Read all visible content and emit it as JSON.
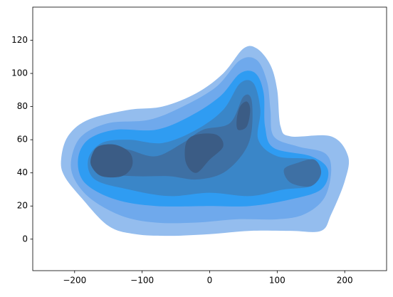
{
  "chart_data": {
    "type": "kde",
    "xlim": [
      -262,
      262
    ],
    "ylim": [
      -19,
      140
    ],
    "xticks": [
      {
        "value": -200,
        "label": "−200"
      },
      {
        "value": -100,
        "label": "−100"
      },
      0,
      100,
      200
    ],
    "yticks": [
      0,
      20,
      40,
      60,
      80,
      100,
      120
    ],
    "contours": [
      {
        "color": "#94bdee",
        "x": [
          -220,
          -210,
          -180,
          -120,
          -70,
          -20,
          20,
          50,
          70,
          90,
          100,
          105,
          120,
          180,
          205,
          200,
          180,
          165,
          120,
          60,
          0,
          -60,
          -110,
          -150,
          -190,
          -215
        ],
        "y": [
          48,
          62,
          72,
          78,
          80,
          88,
          100,
          115,
          115,
          105,
          90,
          68,
          62,
          62,
          50,
          35,
          15,
          5,
          5,
          5,
          3,
          2,
          3,
          8,
          25,
          38
        ]
      },
      {
        "color": "#6fa9ec",
        "x": [
          -205,
          -190,
          -150,
          -90,
          -40,
          10,
          45,
          70,
          85,
          90,
          95,
          130,
          170,
          180,
          170,
          140,
          100,
          40,
          -20,
          -80,
          -130,
          -175,
          -200
        ],
        "y": [
          48,
          62,
          70,
          72,
          80,
          92,
          108,
          108,
          95,
          78,
          62,
          56,
          52,
          42,
          25,
          15,
          12,
          12,
          10,
          10,
          14,
          24,
          36
        ]
      },
      {
        "color": "#2f9cf2",
        "x": [
          -195,
          -180,
          -140,
          -80,
          -30,
          15,
          45,
          68,
          80,
          82,
          95,
          150,
          175,
          165,
          120,
          60,
          0,
          -80,
          -140,
          -185
        ],
        "y": [
          48,
          60,
          66,
          66,
          74,
          86,
          100,
          100,
          88,
          68,
          55,
          50,
          42,
          30,
          24,
          20,
          20,
          20,
          24,
          34
        ]
      },
      {
        "color": "#3a86c8",
        "x": [
          -180,
          -160,
          -120,
          -70,
          -20,
          20,
          45,
          65,
          75,
          72,
          100,
          150,
          165,
          150,
          110,
          60,
          0,
          -60,
          -120,
          -170
        ],
        "y": [
          48,
          58,
          60,
          58,
          66,
          78,
          94,
          94,
          78,
          60,
          50,
          48,
          40,
          32,
          30,
          26,
          28,
          26,
          30,
          36
        ]
      },
      {
        "color": "#3e70a4",
        "x": [
          -170,
          -150,
          -120,
          -80,
          -40,
          -10,
          30,
          50,
          62,
          62,
          50,
          20,
          -20,
          -60,
          -110,
          -160
        ],
        "y": [
          48,
          56,
          54,
          50,
          58,
          66,
          70,
          86,
          84,
          65,
          52,
          40,
          36,
          38,
          38,
          40
        ]
      },
      {
        "color": "#3e70a4",
        "x": [
          110,
          130,
          155,
          165,
          150,
          120
        ],
        "y": [
          42,
          46,
          48,
          40,
          32,
          34
        ]
      },
      {
        "color": "#3b5c85",
        "x": [
          -175,
          -165,
          -140,
          -118,
          -115,
          -130,
          -160,
          -175
        ],
        "y": [
          50,
          56,
          57,
          52,
          44,
          38,
          38,
          44
        ]
      },
      {
        "color": "#3b5c85",
        "x": [
          -35,
          -35,
          -20,
          10,
          20,
          0,
          -20
        ],
        "y": [
          46,
          58,
          63,
          63,
          56,
          48,
          40
        ]
      },
      {
        "color": "#3b5c85",
        "x": [
          40,
          45,
          55,
          60,
          55,
          42
        ],
        "y": [
          72,
          80,
          83,
          78,
          68,
          66
        ]
      }
    ]
  }
}
